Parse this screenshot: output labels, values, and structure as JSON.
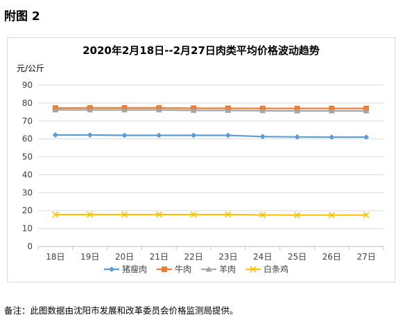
{
  "page": {
    "heading": "附图 2",
    "footnote": "备注：此图数据由沈阳市发展和改革委员会价格监测局提供。"
  },
  "chart_data": {
    "type": "line",
    "title": "2020年2月18日--2月27日肉类平均价格波动趋势",
    "ylabel": "元/公斤",
    "xlabel": "",
    "ylim": [
      0,
      90
    ],
    "yticks": [
      0,
      10,
      20,
      30,
      40,
      50,
      60,
      70,
      80,
      90
    ],
    "grid": true,
    "legend_position": "bottom",
    "categories": [
      "18日",
      "19日",
      "20日",
      "21日",
      "22日",
      "23日",
      "24日",
      "25日",
      "26日",
      "27日"
    ],
    "series": [
      {
        "name": "猪瘦肉",
        "color": "#5b9bd5",
        "marker": "diamond",
        "values": [
          62.2,
          62.2,
          62.0,
          62.0,
          62.0,
          62.0,
          61.3,
          61.1,
          61.0,
          61.0
        ]
      },
      {
        "name": "牛肉",
        "color": "#ed7d31",
        "marker": "square",
        "values": [
          77.2,
          77.3,
          77.3,
          77.3,
          77.1,
          77.1,
          77.0,
          77.0,
          77.0,
          77.0
        ]
      },
      {
        "name": "羊肉",
        "color": "#a5a5a5",
        "marker": "triangle",
        "values": [
          76.2,
          76.2,
          76.2,
          76.2,
          75.9,
          75.9,
          75.7,
          75.6,
          75.6,
          75.6
        ]
      },
      {
        "name": "白条鸡",
        "color": "#ffc000",
        "marker": "x",
        "values": [
          17.8,
          17.8,
          17.8,
          17.8,
          17.8,
          17.8,
          17.6,
          17.5,
          17.5,
          17.5
        ]
      }
    ]
  }
}
